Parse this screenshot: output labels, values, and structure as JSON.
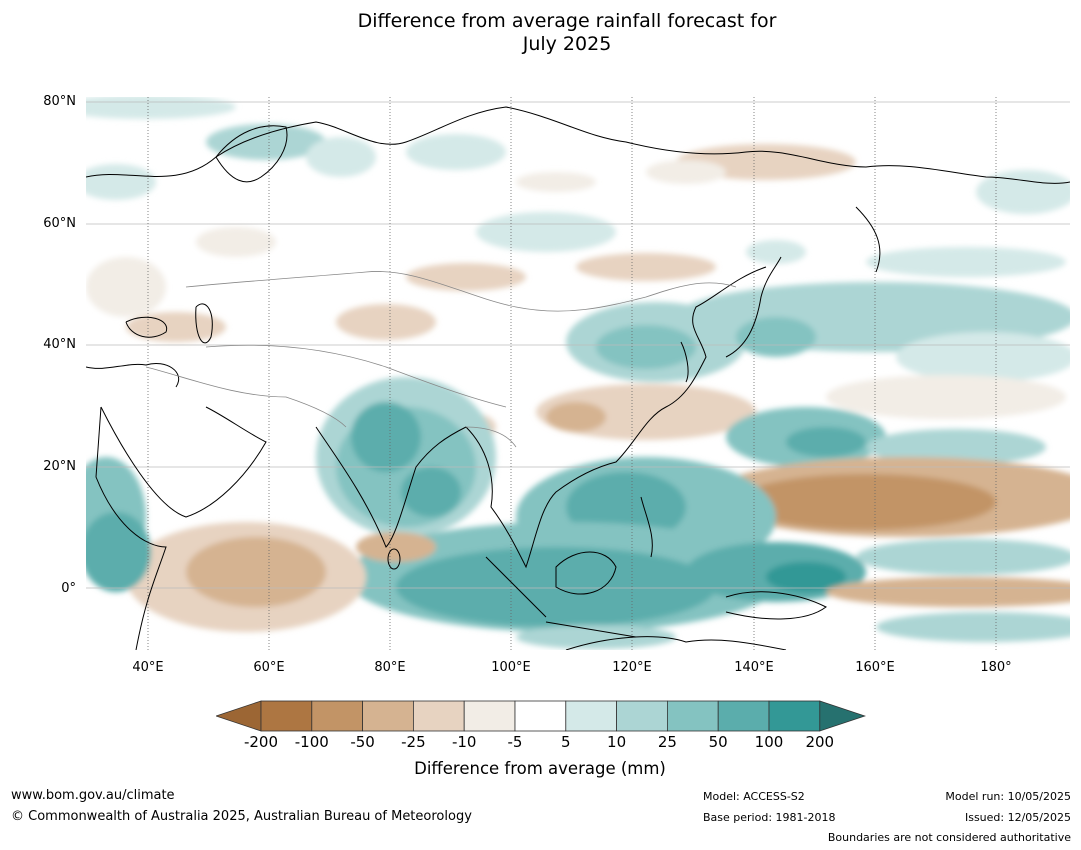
{
  "title": {
    "line1": "Difference from average rainfall forecast for",
    "line2": "July 2025"
  },
  "map": {
    "lat_labels": [
      "80°N",
      "60°N",
      "40°N",
      "20°N",
      "0°"
    ],
    "lon_labels": [
      "40°E",
      "60°E",
      "80°E",
      "100°E",
      "120°E",
      "140°E",
      "160°E",
      "180°"
    ]
  },
  "colorbar": {
    "title": "Difference from average (mm)",
    "ticks": [
      "-200",
      "-100",
      "-50",
      "-25",
      "-10",
      "-5",
      "5",
      "10",
      "25",
      "50",
      "100",
      "200"
    ],
    "colors": [
      "#9c6634",
      "#ad7642",
      "#c29466",
      "#d5b391",
      "#e7d3c1",
      "#f2ede6",
      "#ffffff",
      "#d4e9e8",
      "#acd5d4",
      "#84c3c1",
      "#5badac",
      "#339896",
      "#26716f"
    ]
  },
  "footer": {
    "website": "www.bom.gov.au/climate",
    "copyright": "© Commonwealth of Australia 2025, Australian Bureau of Meteorology",
    "model": "Model: ACCESS-S2",
    "base_period": "Base period: 1981-2018",
    "model_run": "Model run: 10/05/2025",
    "issued": "Issued: 12/05/2025",
    "disclaimer": "Boundaries are not considered authoritative"
  }
}
